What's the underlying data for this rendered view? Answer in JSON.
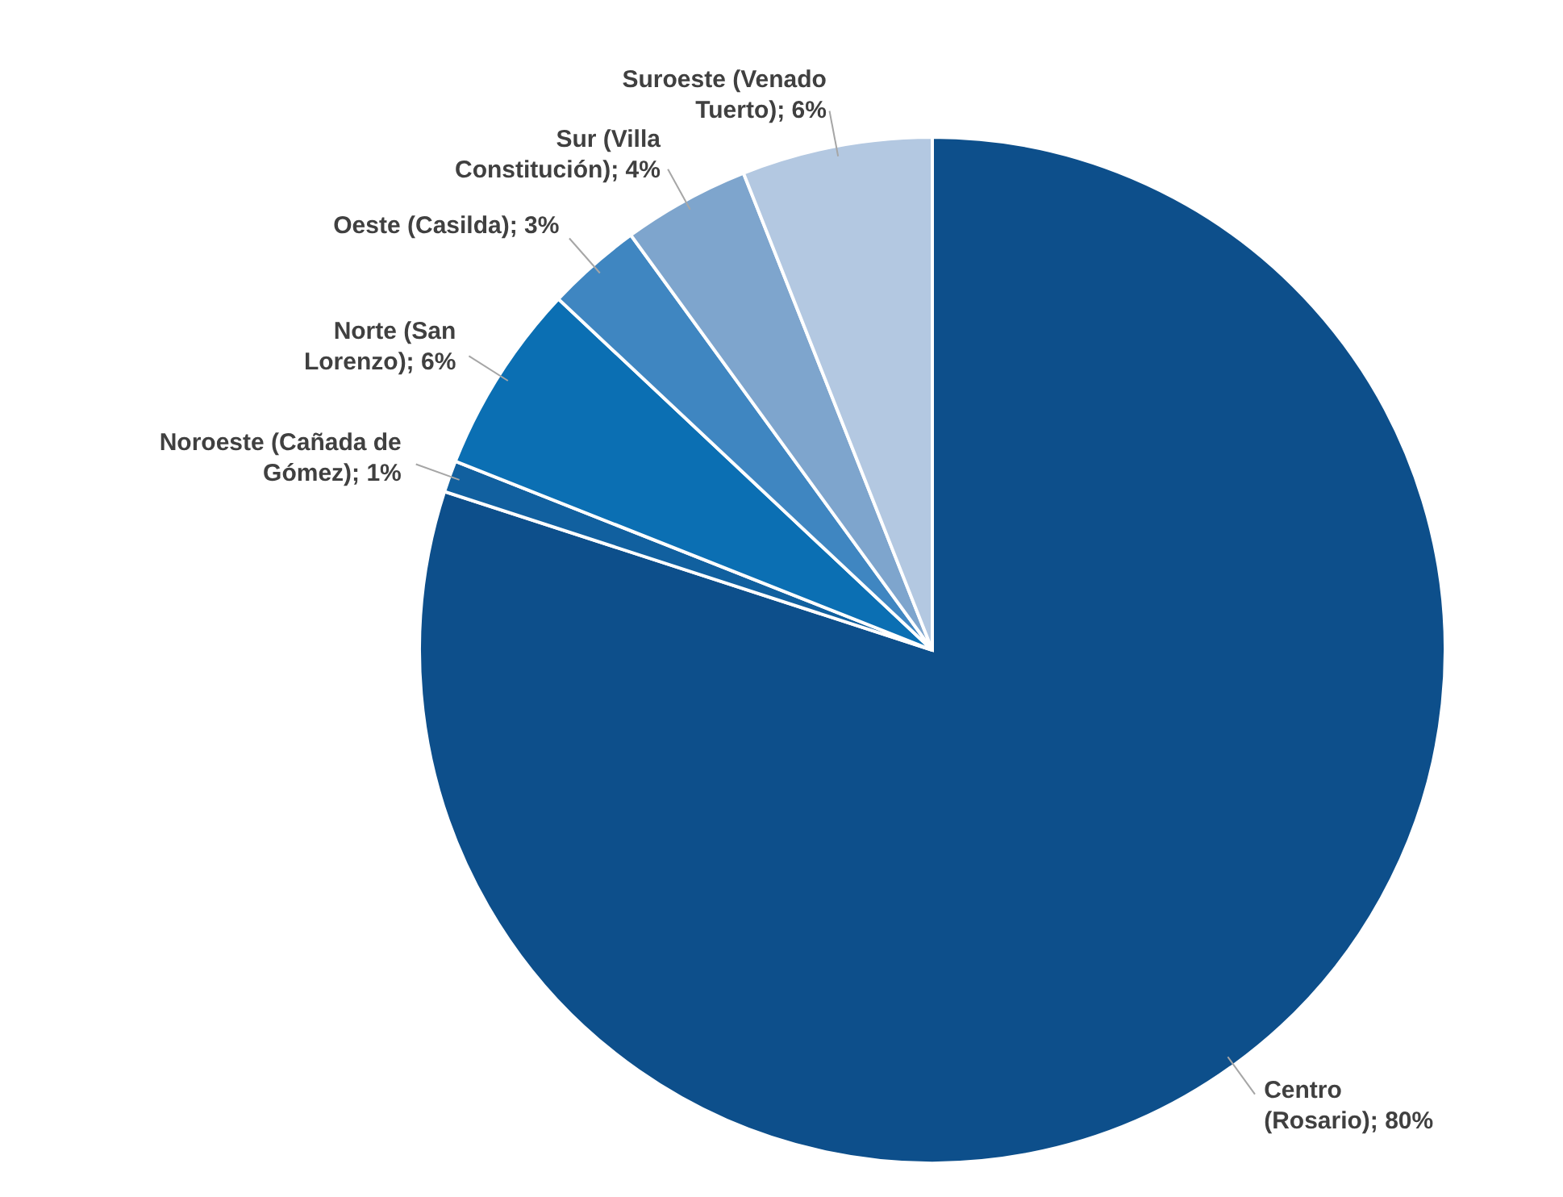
{
  "chart_data": {
    "type": "pie",
    "categories": [
      "Centro (Rosario)",
      "Noroeste (Cañada de Gómez)",
      "Norte (San Lorenzo)",
      "Oeste (Casilda)",
      "Sur (Villa Constitución)",
      "Suroeste (Venado Tuerto)"
    ],
    "values": [
      80,
      1,
      6,
      3,
      4,
      6
    ],
    "value_labels": [
      "80%",
      "1%",
      "6%",
      "3%",
      "4%",
      "6%"
    ],
    "colors": [
      "#0d4f8b",
      "#11609f",
      "#0b6fb3",
      "#3f86c1",
      "#7ea5cd",
      "#b3c8e1"
    ]
  }
}
